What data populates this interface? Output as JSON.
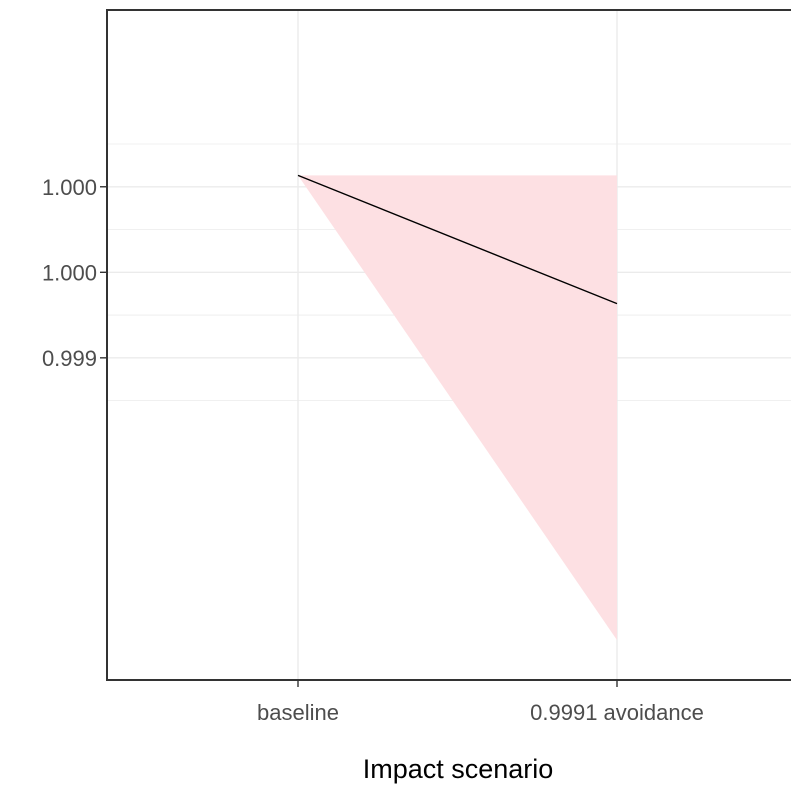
{
  "chart_data": {
    "type": "line",
    "title": "",
    "xlabel": "Impact scenario",
    "ylabel": "",
    "categories": [
      "baseline",
      "0.9991 avoidance"
    ],
    "series": [
      {
        "values": [
          1.00034,
          0.99989
        ],
        "ribbon_lower": [
          1.00034,
          0.99871
        ],
        "ribbon_upper": [
          1.00034,
          1.00034
        ]
      }
    ],
    "y_ticks": [
      {
        "value": 1.0003,
        "label": "1.000"
      },
      {
        "value": 1.0,
        "label": "1.000"
      },
      {
        "value": 0.9997,
        "label": "0.999"
      }
    ],
    "ylim": [
      0.99857,
      1.00092
    ],
    "grid": true,
    "panel_border": true,
    "colors": {
      "line": "#000000",
      "ribbon": "#fde0e3",
      "grid": "#ebebeb",
      "border": "#333333",
      "tick_label": "#4d4d4d",
      "axis_title": "#000000"
    }
  }
}
